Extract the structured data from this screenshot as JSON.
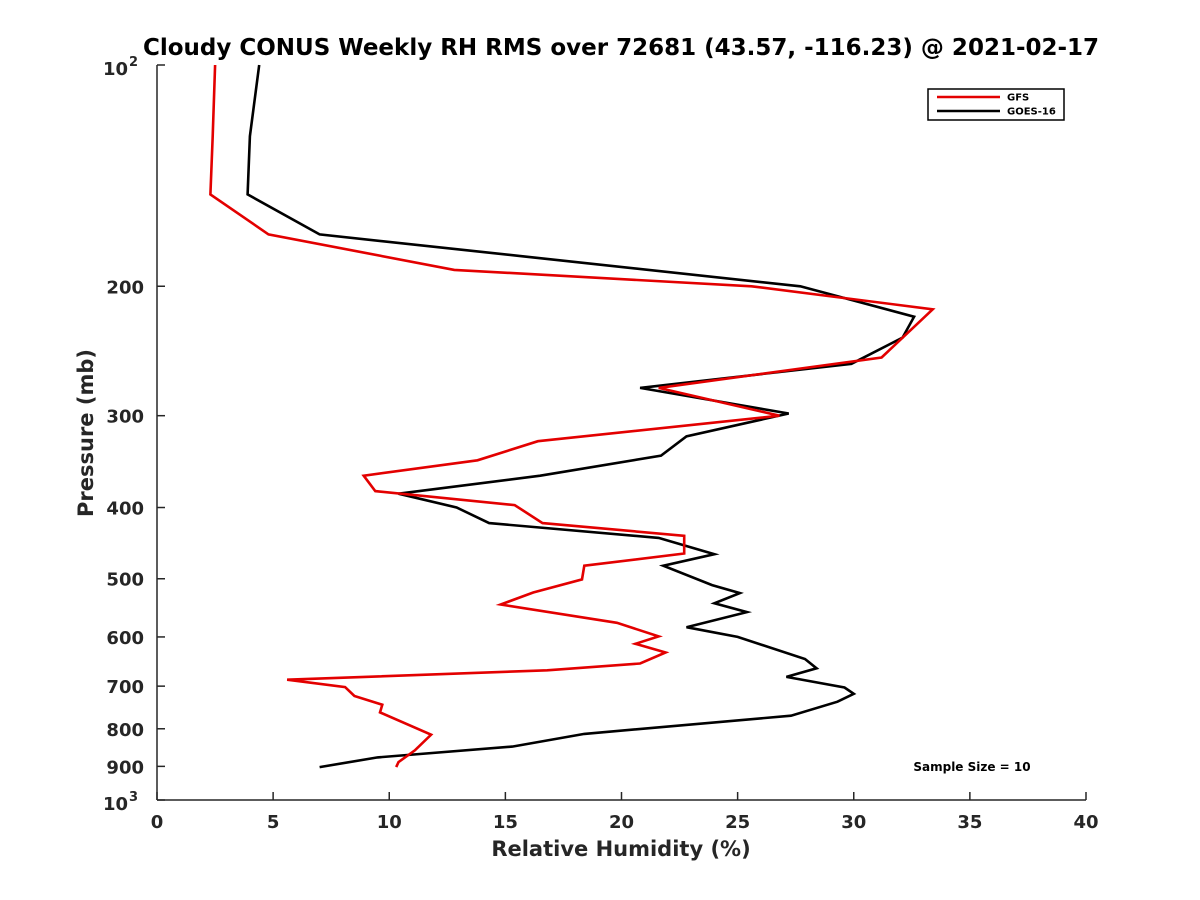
{
  "chart_data": {
    "type": "line",
    "title": "Cloudy CONUS Weekly RH RMS over 72681 (43.57, -116.23) @ 2021-02-17",
    "xlabel": "Relative Humidity (%)",
    "ylabel": "Pressure (mb)",
    "xlim": [
      0,
      40
    ],
    "ylim": [
      100,
      1000
    ],
    "yscale": "log",
    "y_reversed": true,
    "grid": false,
    "legend_position": "top-right",
    "x_ticks": [
      "0",
      "5",
      "10",
      "15",
      "20",
      "25",
      "30",
      "35",
      "40"
    ],
    "y_ticks": [
      {
        "value": 100,
        "base": "10",
        "exp": "2"
      },
      {
        "value": 200,
        "label": "200"
      },
      {
        "value": 300,
        "label": "300"
      },
      {
        "value": 400,
        "label": "400"
      },
      {
        "value": 500,
        "label": "500"
      },
      {
        "value": 600,
        "label": "600"
      },
      {
        "value": 700,
        "label": "700"
      },
      {
        "value": 800,
        "label": "800"
      },
      {
        "value": 900,
        "label": "900"
      },
      {
        "value": 1000,
        "base": "10",
        "exp": "3"
      }
    ],
    "series": [
      {
        "name": "GFS",
        "color": "#e30000",
        "points": [
          [
            2.5,
            100
          ],
          [
            2.4,
            125
          ],
          [
            2.3,
            150
          ],
          [
            4.8,
            170
          ],
          [
            12.8,
            190
          ],
          [
            25.6,
            200
          ],
          [
            33.4,
            215
          ],
          [
            31.2,
            250
          ],
          [
            21.6,
            275
          ],
          [
            26.8,
            300
          ],
          [
            16.4,
            325
          ],
          [
            13.8,
            345
          ],
          [
            8.9,
            362
          ],
          [
            9.4,
            380
          ],
          [
            15.4,
            397
          ],
          [
            16.6,
            420
          ],
          [
            22.7,
            437
          ],
          [
            22.7,
            462
          ],
          [
            18.4,
            480
          ],
          [
            18.3,
            501
          ],
          [
            16.2,
            522
          ],
          [
            14.8,
            542
          ],
          [
            19.8,
            574
          ],
          [
            21.6,
            599
          ],
          [
            20.6,
            613
          ],
          [
            21.9,
            630
          ],
          [
            20.8,
            652
          ],
          [
            16.8,
            666
          ],
          [
            5.6,
            686
          ],
          [
            8.1,
            702
          ],
          [
            8.5,
            722
          ],
          [
            9.7,
            742
          ],
          [
            9.6,
            760
          ],
          [
            11.8,
            815
          ],
          [
            11.1,
            856
          ],
          [
            10.4,
            888
          ],
          [
            10.3,
            902
          ]
        ]
      },
      {
        "name": "GOES-16",
        "color": "#000000",
        "points": [
          [
            4.4,
            100
          ],
          [
            4.0,
            125
          ],
          [
            3.9,
            150
          ],
          [
            7.0,
            170
          ],
          [
            15.7,
            182
          ],
          [
            27.7,
            200
          ],
          [
            32.6,
            220
          ],
          [
            32.1,
            235
          ],
          [
            29.9,
            255
          ],
          [
            20.8,
            275
          ],
          [
            27.2,
            298
          ],
          [
            22.8,
            320
          ],
          [
            21.7,
            340
          ],
          [
            16.5,
            362
          ],
          [
            10.4,
            383
          ],
          [
            12.9,
            400
          ],
          [
            14.3,
            420
          ],
          [
            21.6,
            440
          ],
          [
            24.0,
            463
          ],
          [
            21.8,
            480
          ],
          [
            23.9,
            510
          ],
          [
            25.1,
            523
          ],
          [
            24.0,
            540
          ],
          [
            25.4,
            555
          ],
          [
            22.8,
            582
          ],
          [
            25.0,
            600
          ],
          [
            27.9,
            643
          ],
          [
            28.4,
            662
          ],
          [
            27.1,
            680
          ],
          [
            29.6,
            703
          ],
          [
            30.0,
            717
          ],
          [
            29.3,
            735
          ],
          [
            27.3,
            768
          ],
          [
            18.4,
            813
          ],
          [
            15.3,
            846
          ],
          [
            9.5,
            875
          ],
          [
            7.0,
            902
          ]
        ]
      }
    ],
    "annotations": [
      "Sample Size = 10"
    ]
  }
}
